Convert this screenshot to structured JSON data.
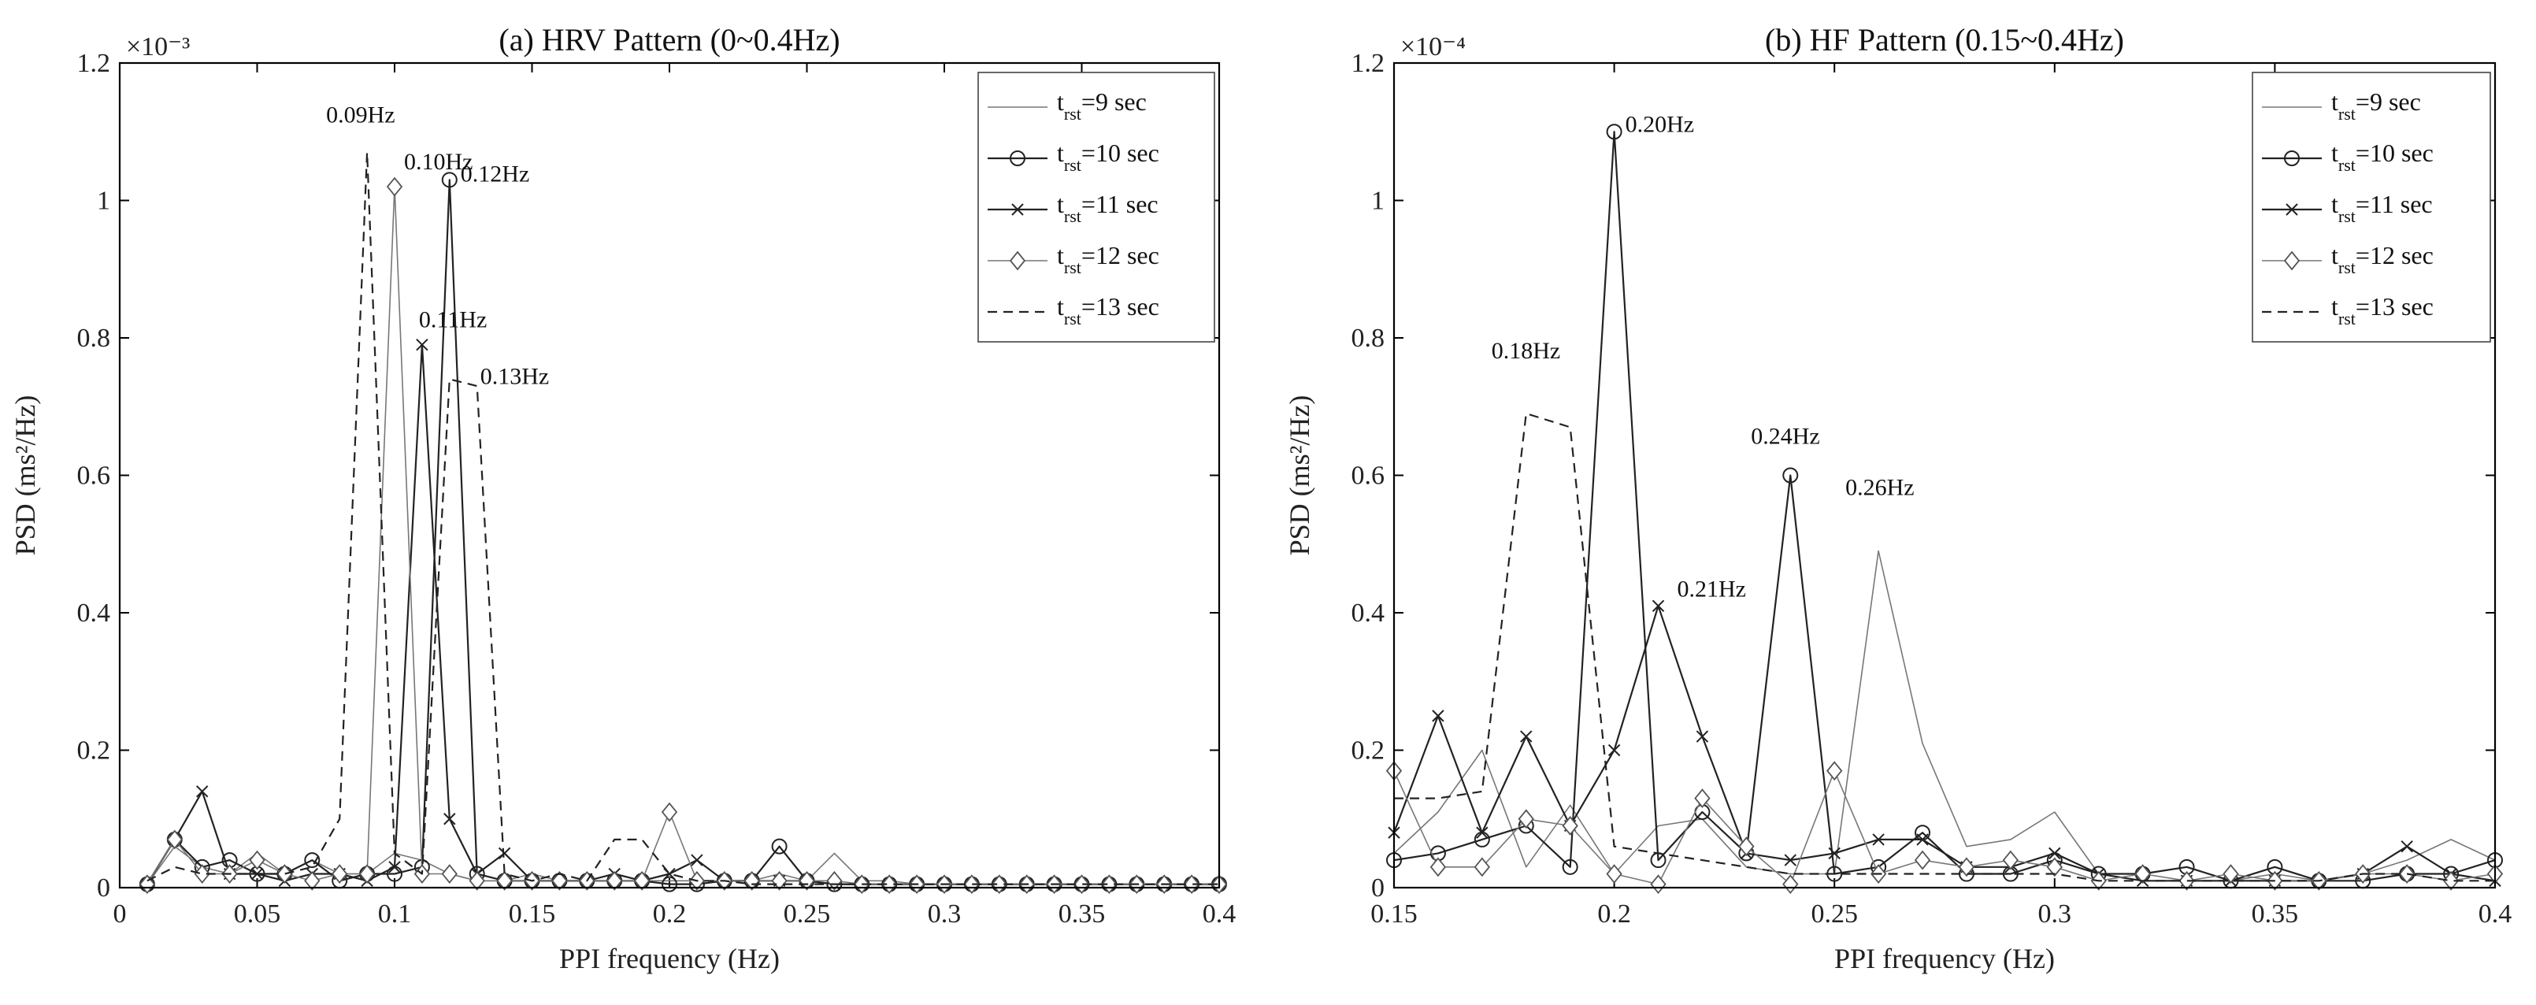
{
  "chart_data": [
    {
      "type": "line",
      "title": "(a) HRV Pattern (0~0.4Hz)",
      "xlabel": "PPI frequency (Hz)",
      "ylabel": "PSD (ms²/Hz)",
      "y_multiplier": "×10⁻³",
      "xlim": [
        0,
        0.4
      ],
      "ylim": [
        0,
        1.2
      ],
      "xticks": [
        "0",
        "0.05",
        "0.1",
        "0.15",
        "0.2",
        "0.25",
        "0.3",
        "0.35",
        "0.4"
      ],
      "yticks": [
        "0",
        "0.2",
        "0.4",
        "0.6",
        "0.8",
        "1",
        "1.2"
      ],
      "legend_position": "top-right",
      "x": [
        0.01,
        0.02,
        0.03,
        0.04,
        0.05,
        0.06,
        0.07,
        0.08,
        0.09,
        0.1,
        0.11,
        0.12,
        0.13,
        0.14,
        0.15,
        0.16,
        0.17,
        0.18,
        0.19,
        0.2,
        0.21,
        0.22,
        0.23,
        0.24,
        0.25,
        0.26,
        0.27,
        0.28,
        0.29,
        0.3,
        0.31,
        0.32,
        0.33,
        0.34,
        0.35,
        0.36,
        0.37,
        0.38,
        0.39,
        0.4
      ],
      "series": [
        {
          "name": "t_rst=9 sec",
          "name_main": "t",
          "name_sub": "rst",
          "name_rest": "=9 sec",
          "style": "thin",
          "marker": "none",
          "values": [
            0.005,
            0.06,
            0.03,
            0.02,
            0.05,
            0.02,
            0.04,
            0.02,
            0.02,
            0.05,
            0.04,
            0.02,
            0.01,
            0.01,
            0.02,
            0.01,
            0.01,
            0.01,
            0.01,
            0.01,
            0.01,
            0.01,
            0.01,
            0.02,
            0.01,
            0.05,
            0.01,
            0.01,
            0.005,
            0.005,
            0.005,
            0.005,
            0.005,
            0.005,
            0.005,
            0.005,
            0.005,
            0.005,
            0.005,
            0.005
          ]
        },
        {
          "name": "t_rst=10 sec",
          "name_main": "t",
          "name_sub": "rst",
          "name_rest": "=10 sec",
          "style": "solid",
          "marker": "circle",
          "values": [
            0.005,
            0.07,
            0.03,
            0.04,
            0.02,
            0.02,
            0.04,
            0.01,
            0.02,
            0.02,
            0.03,
            1.03,
            0.02,
            0.01,
            0.01,
            0.01,
            0.01,
            0.01,
            0.01,
            0.005,
            0.005,
            0.01,
            0.01,
            0.06,
            0.01,
            0.005,
            0.005,
            0.005,
            0.005,
            0.005,
            0.005,
            0.005,
            0.005,
            0.005,
            0.005,
            0.005,
            0.005,
            0.005,
            0.005,
            0.005
          ]
        },
        {
          "name": "t_rst=11 sec",
          "name_main": "t",
          "name_sub": "rst",
          "name_rest": "=11 sec",
          "style": "solid",
          "marker": "x",
          "values": [
            0.005,
            0.07,
            0.14,
            0.02,
            0.02,
            0.01,
            0.02,
            0.02,
            0.01,
            0.03,
            0.79,
            0.1,
            0.02,
            0.05,
            0.01,
            0.01,
            0.01,
            0.02,
            0.01,
            0.02,
            0.04,
            0.01,
            0.01,
            0.01,
            0.01,
            0.005,
            0.005,
            0.005,
            0.005,
            0.005,
            0.005,
            0.005,
            0.005,
            0.005,
            0.005,
            0.005,
            0.005,
            0.005,
            0.005,
            0.005
          ]
        },
        {
          "name": "t_rst=12 sec",
          "name_main": "t",
          "name_sub": "rst",
          "name_rest": "=12 sec",
          "style": "thin",
          "marker": "diamond",
          "values": [
            0.005,
            0.07,
            0.02,
            0.02,
            0.04,
            0.02,
            0.01,
            0.02,
            0.02,
            1.02,
            0.02,
            0.02,
            0.01,
            0.01,
            0.01,
            0.01,
            0.01,
            0.01,
            0.01,
            0.11,
            0.01,
            0.01,
            0.01,
            0.01,
            0.01,
            0.01,
            0.005,
            0.005,
            0.005,
            0.005,
            0.005,
            0.005,
            0.005,
            0.005,
            0.005,
            0.005,
            0.005,
            0.005,
            0.005,
            0.005
          ]
        },
        {
          "name": "t_rst=13 sec",
          "name_main": "t",
          "name_sub": "rst",
          "name_rest": "=13 sec",
          "style": "dashed",
          "marker": "none",
          "values": [
            0.01,
            0.03,
            0.02,
            0.02,
            0.02,
            0.02,
            0.03,
            0.1,
            1.07,
            0.05,
            0.02,
            0.74,
            0.73,
            0.02,
            0.01,
            0.02,
            0.01,
            0.07,
            0.07,
            0.02,
            0.01,
            0.01,
            0.005,
            0.005,
            0.005,
            0.005,
            0.005,
            0.005,
            0.005,
            0.005,
            0.005,
            0.005,
            0.005,
            0.005,
            0.005,
            0.005,
            0.005,
            0.005,
            0.005,
            0.005
          ]
        }
      ],
      "annotations": [
        {
          "text": "0.09Hz",
          "x": 0.09,
          "y": 1.07
        },
        {
          "text": "0.10Hz",
          "x": 0.1,
          "y": 1.02
        },
        {
          "text": "0.12Hz",
          "x": 0.12,
          "y": 1.03
        },
        {
          "text": "0.11Hz",
          "x": 0.11,
          "y": 0.79
        },
        {
          "text": "0.13Hz",
          "x": 0.13,
          "y": 0.74
        }
      ]
    },
    {
      "type": "line",
      "title": "(b) HF Pattern (0.15~0.4Hz)",
      "xlabel": "PPI frequency (Hz)",
      "ylabel": "PSD (ms²/Hz)",
      "y_multiplier": "×10⁻⁴",
      "xlim": [
        0.15,
        0.4
      ],
      "ylim": [
        0,
        1.2
      ],
      "xticks": [
        "0.15",
        "0.2",
        "0.25",
        "0.3",
        "0.35",
        "0.4"
      ],
      "yticks": [
        "0",
        "0.2",
        "0.4",
        "0.6",
        "0.8",
        "1",
        "1.2"
      ],
      "legend_position": "top-right",
      "x": [
        0.15,
        0.16,
        0.17,
        0.18,
        0.19,
        0.2,
        0.21,
        0.22,
        0.23,
        0.24,
        0.25,
        0.26,
        0.27,
        0.28,
        0.29,
        0.3,
        0.31,
        0.32,
        0.33,
        0.34,
        0.35,
        0.36,
        0.37,
        0.38,
        0.39,
        0.4
      ],
      "series": [
        {
          "name": "t_rst=9 sec",
          "name_main": "t",
          "name_sub": "rst",
          "name_rest": "=9 sec",
          "style": "thin",
          "marker": "none",
          "values": [
            0.05,
            0.11,
            0.2,
            0.03,
            0.12,
            0.02,
            0.09,
            0.1,
            0.03,
            0.02,
            0.02,
            0.49,
            0.21,
            0.06,
            0.07,
            0.11,
            0.02,
            0.02,
            0.03,
            0.01,
            0.02,
            0.01,
            0.02,
            0.04,
            0.07,
            0.04
          ]
        },
        {
          "name": "t_rst=10 sec",
          "name_main": "t",
          "name_sub": "rst",
          "name_rest": "=10 sec",
          "style": "solid",
          "marker": "circle",
          "values": [
            0.04,
            0.05,
            0.07,
            0.09,
            0.03,
            1.1,
            0.04,
            0.11,
            0.05,
            0.6,
            0.02,
            0.03,
            0.08,
            0.02,
            0.02,
            0.04,
            0.02,
            0.02,
            0.03,
            0.01,
            0.03,
            0.01,
            0.01,
            0.02,
            0.02,
            0.04
          ]
        },
        {
          "name": "t_rst=11 sec",
          "name_main": "t",
          "name_sub": "rst",
          "name_rest": "=11 sec",
          "style": "solid",
          "marker": "x",
          "values": [
            0.08,
            0.25,
            0.08,
            0.22,
            0.09,
            0.2,
            0.41,
            0.22,
            0.05,
            0.04,
            0.05,
            0.07,
            0.07,
            0.03,
            0.03,
            0.05,
            0.02,
            0.01,
            0.01,
            0.01,
            0.01,
            0.01,
            0.02,
            0.06,
            0.02,
            0.01
          ]
        },
        {
          "name": "t_rst=12 sec",
          "name_main": "t",
          "name_sub": "rst",
          "name_rest": "=12 sec",
          "style": "thin",
          "marker": "diamond",
          "values": [
            0.17,
            0.03,
            0.03,
            0.1,
            0.09,
            0.02,
            0.005,
            0.13,
            0.06,
            0.005,
            0.17,
            0.02,
            0.04,
            0.03,
            0.04,
            0.03,
            0.01,
            0.02,
            0.01,
            0.02,
            0.01,
            0.01,
            0.02,
            0.02,
            0.01,
            0.02
          ]
        },
        {
          "name": "t_rst=13 sec",
          "name_main": "t",
          "name_sub": "rst",
          "name_rest": "=13 sec",
          "style": "dashed",
          "marker": "none",
          "values": [
            0.13,
            0.13,
            0.14,
            0.69,
            0.67,
            0.06,
            0.05,
            0.04,
            0.03,
            0.02,
            0.02,
            0.02,
            0.02,
            0.02,
            0.02,
            0.02,
            0.01,
            0.01,
            0.01,
            0.01,
            0.01,
            0.01,
            0.02,
            0.02,
            0.01,
            0.01
          ]
        }
      ],
      "annotations": [
        {
          "text": "0.20Hz",
          "x": 0.2,
          "y": 1.1
        },
        {
          "text": "0.18Hz",
          "x": 0.18,
          "y": 0.69
        },
        {
          "text": "0.24Hz",
          "x": 0.24,
          "y": 0.6
        },
        {
          "text": "0.26Hz",
          "x": 0.26,
          "y": 0.53
        },
        {
          "text": "0.21Hz",
          "x": 0.21,
          "y": 0.41
        }
      ]
    }
  ]
}
